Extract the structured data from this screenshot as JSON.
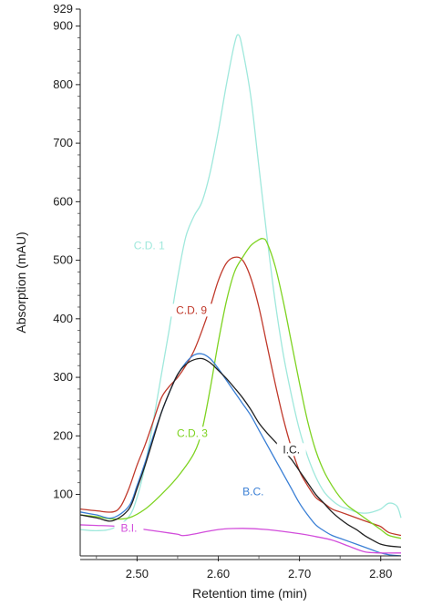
{
  "chart_data": {
    "type": "line",
    "title": "",
    "xlabel": "Retention time (min)",
    "ylabel": "Absorption (mAU)",
    "xlim": [
      2.43,
      2.825
    ],
    "ylim": [
      -5,
      929
    ],
    "x_ticks": [
      2.5,
      2.6,
      2.7,
      2.8
    ],
    "x_tick_labels": [
      "2.50",
      "2.60",
      "2.70",
      "2.80"
    ],
    "y_ticks": [
      100,
      200,
      300,
      400,
      500,
      600,
      700,
      800,
      900,
      929
    ],
    "y_tick_labels": [
      "100",
      "200",
      "300",
      "400",
      "500",
      "600",
      "700",
      "800",
      "900",
      "929"
    ],
    "grid": false,
    "legend": "none",
    "series": [
      {
        "name": "C.D. 1",
        "color": "#9fe8dc",
        "label_at": [
          2.515,
          520
        ],
        "x": [
          2.43,
          2.45,
          2.47,
          2.49,
          2.5,
          2.51,
          2.52,
          2.53,
          2.54,
          2.55,
          2.56,
          2.57,
          2.58,
          2.59,
          2.6,
          2.61,
          2.62,
          2.625,
          2.63,
          2.64,
          2.65,
          2.66,
          2.67,
          2.68,
          2.69,
          2.7,
          2.71,
          2.72,
          2.73,
          2.74,
          2.75,
          2.76,
          2.77,
          2.78,
          2.79,
          2.8,
          2.81,
          2.82,
          2.825
        ],
        "values": [
          40,
          38,
          42,
          62,
          95,
          150,
          225,
          305,
          385,
          470,
          540,
          575,
          600,
          650,
          720,
          800,
          870,
          885,
          860,
          780,
          660,
          540,
          430,
          340,
          270,
          210,
          165,
          130,
          105,
          90,
          80,
          75,
          70,
          68,
          70,
          75,
          85,
          80,
          60
        ]
      },
      {
        "name": "C.D. 9",
        "color": "#c0392b",
        "label_at": [
          2.567,
          410
        ],
        "x": [
          2.43,
          2.45,
          2.47,
          2.48,
          2.49,
          2.5,
          2.51,
          2.52,
          2.53,
          2.54,
          2.55,
          2.56,
          2.57,
          2.58,
          2.59,
          2.6,
          2.61,
          2.62,
          2.63,
          2.64,
          2.65,
          2.66,
          2.67,
          2.68,
          2.69,
          2.7,
          2.71,
          2.72,
          2.73,
          2.74,
          2.75,
          2.76,
          2.77,
          2.78,
          2.79,
          2.8,
          2.81,
          2.825
        ],
        "values": [
          75,
          72,
          70,
          80,
          110,
          150,
          185,
          225,
          265,
          285,
          300,
          320,
          345,
          380,
          420,
          465,
          495,
          505,
          500,
          470,
          420,
          355,
          290,
          230,
          180,
          140,
          115,
          95,
          85,
          75,
          70,
          65,
          60,
          55,
          50,
          45,
          35,
          30
        ]
      },
      {
        "name": "C.D. 3",
        "color": "#7ed321",
        "label_at": [
          2.568,
          200
        ],
        "x": [
          2.43,
          2.45,
          2.47,
          2.49,
          2.51,
          2.53,
          2.55,
          2.57,
          2.58,
          2.59,
          2.6,
          2.61,
          2.62,
          2.63,
          2.64,
          2.65,
          2.655,
          2.66,
          2.67,
          2.68,
          2.69,
          2.7,
          2.71,
          2.72,
          2.73,
          2.74,
          2.75,
          2.76,
          2.77,
          2.78,
          2.79,
          2.8,
          2.81,
          2.825
        ],
        "values": [
          65,
          62,
          58,
          60,
          75,
          100,
          130,
          170,
          210,
          280,
          360,
          430,
          480,
          505,
          525,
          535,
          537,
          530,
          490,
          430,
          360,
          290,
          225,
          175,
          140,
          115,
          95,
          80,
          70,
          60,
          50,
          40,
          30,
          25
        ]
      },
      {
        "name": "B.C.",
        "color": "#3a7fd5",
        "label_at": [
          2.643,
          100
        ],
        "x": [
          2.43,
          2.45,
          2.47,
          2.49,
          2.5,
          2.51,
          2.52,
          2.53,
          2.54,
          2.55,
          2.56,
          2.57,
          2.58,
          2.59,
          2.6,
          2.61,
          2.62,
          2.63,
          2.64,
          2.65,
          2.66,
          2.67,
          2.68,
          2.69,
          2.7,
          2.71,
          2.72,
          2.73,
          2.74,
          2.75,
          2.76,
          2.77,
          2.78,
          2.79,
          2.8,
          2.81,
          2.825
        ],
        "values": [
          70,
          65,
          60,
          80,
          115,
          155,
          200,
          240,
          275,
          305,
          325,
          338,
          340,
          332,
          315,
          295,
          275,
          255,
          235,
          210,
          185,
          160,
          135,
          110,
          85,
          65,
          48,
          38,
          30,
          25,
          20,
          15,
          10,
          5,
          0,
          -3,
          -5
        ]
      },
      {
        "name": "I.C.",
        "color": "#222222",
        "label_at": [
          2.69,
          172
        ],
        "x": [
          2.43,
          2.45,
          2.47,
          2.49,
          2.5,
          2.51,
          2.52,
          2.53,
          2.54,
          2.55,
          2.56,
          2.57,
          2.58,
          2.59,
          2.6,
          2.61,
          2.62,
          2.63,
          2.64,
          2.65,
          2.66,
          2.67,
          2.68,
          2.69,
          2.7,
          2.71,
          2.72,
          2.73,
          2.74,
          2.75,
          2.76,
          2.77,
          2.78,
          2.79,
          2.8,
          2.81,
          2.825
        ],
        "values": [
          65,
          60,
          55,
          75,
          110,
          150,
          195,
          240,
          275,
          305,
          322,
          330,
          332,
          325,
          312,
          298,
          282,
          265,
          245,
          222,
          205,
          190,
          175,
          160,
          140,
          120,
          100,
          85,
          70,
          58,
          48,
          40,
          30,
          22,
          15,
          12,
          10
        ]
      },
      {
        "name": "B.I.",
        "color": "#d24ddb",
        "label_at": [
          2.49,
          38
        ],
        "x": [
          2.43,
          2.45,
          2.47,
          2.49,
          2.5,
          2.51,
          2.52,
          2.53,
          2.55,
          2.56,
          2.6,
          2.63,
          2.66,
          2.7,
          2.72,
          2.74,
          2.76,
          2.78,
          2.8,
          2.825
        ],
        "values": [
          48,
          47,
          46,
          44,
          42,
          40,
          38,
          36,
          32,
          30,
          40,
          42,
          40,
          33,
          28,
          22,
          12,
          2,
          0,
          0
        ]
      }
    ]
  }
}
